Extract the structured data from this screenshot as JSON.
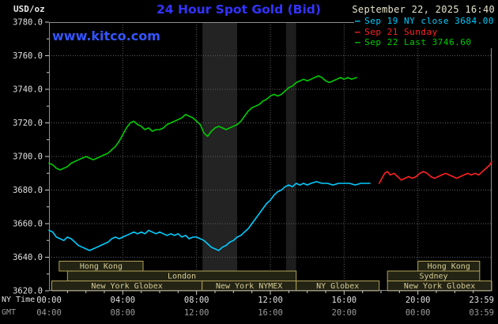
{
  "header": {
    "units": "USD/oz",
    "title": "24 Hour Spot Gold (Bid)",
    "datetime": "September 22, 2025 16:40",
    "watermark": "www.kitco.com"
  },
  "legend": [
    {
      "id": "sep19",
      "label": "Sep 19 NY close 3684.00",
      "color": "#00ccff"
    },
    {
      "id": "sep21",
      "label": "Sep 21 Sunday",
      "color": "#ff2222"
    },
    {
      "id": "sep22",
      "label": "Sep 22 Last 3746.60",
      "color": "#00cc00"
    }
  ],
  "axis": {
    "ny_label": "NY Time",
    "gmt_label": "GMT",
    "y_ticks": [
      "3780.0",
      "3760.0",
      "3740.0",
      "3720.0",
      "3700.0",
      "3680.0",
      "3660.0",
      "3640.0",
      "3620.0"
    ],
    "ny_ticks": [
      "00:00",
      "04:00",
      "08:00",
      "12:00",
      "16:00",
      "20:00",
      "23:59"
    ],
    "gmt_ticks": [
      "04:00",
      "08:00",
      "12:00",
      "16:00",
      "20:00",
      "00:00",
      "03:59"
    ]
  },
  "sessions": [
    {
      "row": 0,
      "start": 0.55,
      "end": 5.1,
      "label": "Hong Kong"
    },
    {
      "row": 0,
      "start": 20.0,
      "end": 23.35,
      "label": "Hong Kong"
    },
    {
      "row": 1,
      "start": 1.0,
      "end": 13.4,
      "label": "London"
    },
    {
      "row": 1,
      "start": 18.35,
      "end": 23.35,
      "label": "Sydney"
    },
    {
      "row": 2,
      "start": 0.15,
      "end": 8.3,
      "label": "New York Globex"
    },
    {
      "row": 2,
      "start": 8.3,
      "end": 13.4,
      "label": "New York NYMEX"
    },
    {
      "row": 2,
      "start": 13.4,
      "end": 17.9,
      "label": "NY Globex"
    },
    {
      "row": 2,
      "start": 18.35,
      "end": 24.0,
      "label": "New York Globex"
    }
  ],
  "colors": {
    "title": "#3333ff",
    "watermark": "#3355ff",
    "datetime": "#e6e3cd",
    "axis_text": "#e0e0e0",
    "axis_text_dim": "#9a9a9a",
    "grid": "#5f5f5f",
    "border": "#909090",
    "tick": "#cccccc",
    "session_border": "#b0a257",
    "session_text": "#d6cd96",
    "session_fill": "#242414"
  },
  "chart_data": {
    "type": "line",
    "title": "24 Hour Spot Gold (Bid)",
    "x_unit": "hours, NY time",
    "xlim": [
      0,
      24
    ],
    "ylim": [
      3620,
      3780
    ],
    "grid_x_hours": [
      4,
      8,
      12,
      16,
      20
    ],
    "grid_y_values": [
      3640,
      3660,
      3680,
      3700,
      3720,
      3740,
      3760
    ],
    "ny_close": 3684.0,
    "last": 3746.6,
    "highlight_bands": [
      {
        "start": 8.32,
        "end": 10.2,
        "color": "#232323"
      },
      {
        "start": 12.85,
        "end": 13.4,
        "color": "#1d1d1d"
      }
    ],
    "series": [
      {
        "id": "sep19",
        "name": "Sep 19 NY close 3684.00",
        "color": "#00ccff",
        "points": [
          [
            0,
            3656
          ],
          [
            0.2,
            3655
          ],
          [
            0.4,
            3652
          ],
          [
            0.6,
            3651
          ],
          [
            0.8,
            3650
          ],
          [
            1,
            3652
          ],
          [
            1.2,
            3651
          ],
          [
            1.4,
            3649
          ],
          [
            1.6,
            3647
          ],
          [
            1.8,
            3646
          ],
          [
            2,
            3645
          ],
          [
            2.2,
            3644
          ],
          [
            2.4,
            3645
          ],
          [
            2.6,
            3646
          ],
          [
            2.8,
            3647
          ],
          [
            3,
            3648
          ],
          [
            3.2,
            3649
          ],
          [
            3.4,
            3651
          ],
          [
            3.6,
            3652
          ],
          [
            3.8,
            3651
          ],
          [
            4,
            3652
          ],
          [
            4.2,
            3653
          ],
          [
            4.4,
            3654
          ],
          [
            4.6,
            3655
          ],
          [
            4.8,
            3654
          ],
          [
            5,
            3655
          ],
          [
            5.2,
            3654
          ],
          [
            5.4,
            3656
          ],
          [
            5.6,
            3655
          ],
          [
            5.8,
            3654
          ],
          [
            6,
            3655
          ],
          [
            6.2,
            3654
          ],
          [
            6.4,
            3653
          ],
          [
            6.6,
            3654
          ],
          [
            6.8,
            3653
          ],
          [
            7,
            3654
          ],
          [
            7.2,
            3652
          ],
          [
            7.4,
            3653
          ],
          [
            7.6,
            3651
          ],
          [
            7.8,
            3652
          ],
          [
            8,
            3652
          ],
          [
            8.2,
            3651
          ],
          [
            8.4,
            3650
          ],
          [
            8.6,
            3648
          ],
          [
            8.8,
            3646
          ],
          [
            9,
            3645
          ],
          [
            9.2,
            3644
          ],
          [
            9.4,
            3646
          ],
          [
            9.6,
            3647
          ],
          [
            9.8,
            3649
          ],
          [
            10,
            3650
          ],
          [
            10.2,
            3652
          ],
          [
            10.4,
            3653
          ],
          [
            10.6,
            3655
          ],
          [
            10.8,
            3657
          ],
          [
            11,
            3660
          ],
          [
            11.2,
            3663
          ],
          [
            11.4,
            3666
          ],
          [
            11.6,
            3669
          ],
          [
            11.8,
            3672
          ],
          [
            12,
            3674
          ],
          [
            12.2,
            3677
          ],
          [
            12.4,
            3679
          ],
          [
            12.6,
            3680
          ],
          [
            12.8,
            3682
          ],
          [
            13,
            3683
          ],
          [
            13.2,
            3682
          ],
          [
            13.4,
            3684
          ],
          [
            13.6,
            3683
          ],
          [
            13.8,
            3684
          ],
          [
            14,
            3683
          ],
          [
            14.2,
            3684
          ],
          [
            14.5,
            3685
          ],
          [
            14.8,
            3684
          ],
          [
            15.1,
            3684
          ],
          [
            15.4,
            3683
          ],
          [
            15.7,
            3684
          ],
          [
            16,
            3684
          ],
          [
            16.3,
            3684
          ],
          [
            16.6,
            3683
          ],
          [
            16.9,
            3684
          ],
          [
            17.2,
            3684
          ],
          [
            17.4,
            3684
          ]
        ]
      },
      {
        "id": "sep21",
        "name": "Sep 21 Sunday",
        "color": "#ff2222",
        "points": [
          [
            17.9,
            3684
          ],
          [
            18,
            3686
          ],
          [
            18.1,
            3688
          ],
          [
            18.2,
            3690
          ],
          [
            18.35,
            3691
          ],
          [
            18.5,
            3689
          ],
          [
            18.7,
            3690
          ],
          [
            18.9,
            3688
          ],
          [
            19.1,
            3686
          ],
          [
            19.3,
            3687
          ],
          [
            19.5,
            3688
          ],
          [
            19.7,
            3687
          ],
          [
            19.9,
            3688
          ],
          [
            20.1,
            3690
          ],
          [
            20.3,
            3691
          ],
          [
            20.5,
            3690
          ],
          [
            20.7,
            3688
          ],
          [
            20.9,
            3687
          ],
          [
            21.1,
            3688
          ],
          [
            21.3,
            3689
          ],
          [
            21.5,
            3690
          ],
          [
            21.7,
            3689
          ],
          [
            21.9,
            3688
          ],
          [
            22.1,
            3687
          ],
          [
            22.3,
            3688
          ],
          [
            22.5,
            3689
          ],
          [
            22.7,
            3690
          ],
          [
            22.9,
            3689
          ],
          [
            23.1,
            3690
          ],
          [
            23.3,
            3689
          ],
          [
            23.5,
            3691
          ],
          [
            23.7,
            3693
          ],
          [
            23.9,
            3695
          ],
          [
            24,
            3697
          ]
        ]
      },
      {
        "id": "sep22",
        "name": "Sep 22 Last 3746.60",
        "color": "#00cc00",
        "points": [
          [
            0,
            3696
          ],
          [
            0.2,
            3695
          ],
          [
            0.4,
            3693
          ],
          [
            0.6,
            3692
          ],
          [
            0.8,
            3693
          ],
          [
            1,
            3694
          ],
          [
            1.2,
            3696
          ],
          [
            1.4,
            3697
          ],
          [
            1.6,
            3698
          ],
          [
            1.8,
            3699
          ],
          [
            2,
            3700
          ],
          [
            2.2,
            3699
          ],
          [
            2.4,
            3698
          ],
          [
            2.6,
            3699
          ],
          [
            2.8,
            3700
          ],
          [
            3,
            3701
          ],
          [
            3.2,
            3702
          ],
          [
            3.4,
            3704
          ],
          [
            3.6,
            3706
          ],
          [
            3.8,
            3709
          ],
          [
            4,
            3713
          ],
          [
            4.2,
            3717
          ],
          [
            4.4,
            3720
          ],
          [
            4.6,
            3721
          ],
          [
            4.8,
            3719
          ],
          [
            5,
            3718
          ],
          [
            5.2,
            3716
          ],
          [
            5.4,
            3717
          ],
          [
            5.6,
            3715
          ],
          [
            5.8,
            3716
          ],
          [
            6,
            3716
          ],
          [
            6.2,
            3717
          ],
          [
            6.4,
            3719
          ],
          [
            6.6,
            3720
          ],
          [
            6.8,
            3721
          ],
          [
            7,
            3722
          ],
          [
            7.2,
            3723
          ],
          [
            7.4,
            3725
          ],
          [
            7.6,
            3724
          ],
          [
            7.8,
            3723
          ],
          [
            8,
            3721
          ],
          [
            8.2,
            3719
          ],
          [
            8.4,
            3714
          ],
          [
            8.6,
            3712
          ],
          [
            8.8,
            3715
          ],
          [
            9,
            3717
          ],
          [
            9.2,
            3718
          ],
          [
            9.4,
            3717
          ],
          [
            9.6,
            3716
          ],
          [
            9.8,
            3717
          ],
          [
            10,
            3718
          ],
          [
            10.2,
            3719
          ],
          [
            10.4,
            3721
          ],
          [
            10.6,
            3724
          ],
          [
            10.8,
            3727
          ],
          [
            11,
            3729
          ],
          [
            11.2,
            3730
          ],
          [
            11.4,
            3731
          ],
          [
            11.6,
            3733
          ],
          [
            11.8,
            3734
          ],
          [
            12,
            3736
          ],
          [
            12.2,
            3737
          ],
          [
            12.4,
            3736
          ],
          [
            12.6,
            3737
          ],
          [
            12.8,
            3739
          ],
          [
            13,
            3741
          ],
          [
            13.2,
            3742
          ],
          [
            13.4,
            3744
          ],
          [
            13.6,
            3745
          ],
          [
            13.8,
            3746
          ],
          [
            14,
            3745
          ],
          [
            14.2,
            3746
          ],
          [
            14.4,
            3747
          ],
          [
            14.6,
            3748
          ],
          [
            14.8,
            3747
          ],
          [
            15,
            3745
          ],
          [
            15.2,
            3744
          ],
          [
            15.4,
            3745
          ],
          [
            15.6,
            3746
          ],
          [
            15.8,
            3747
          ],
          [
            16,
            3746
          ],
          [
            16.2,
            3747
          ],
          [
            16.4,
            3746
          ],
          [
            16.67,
            3747
          ]
        ]
      }
    ]
  }
}
